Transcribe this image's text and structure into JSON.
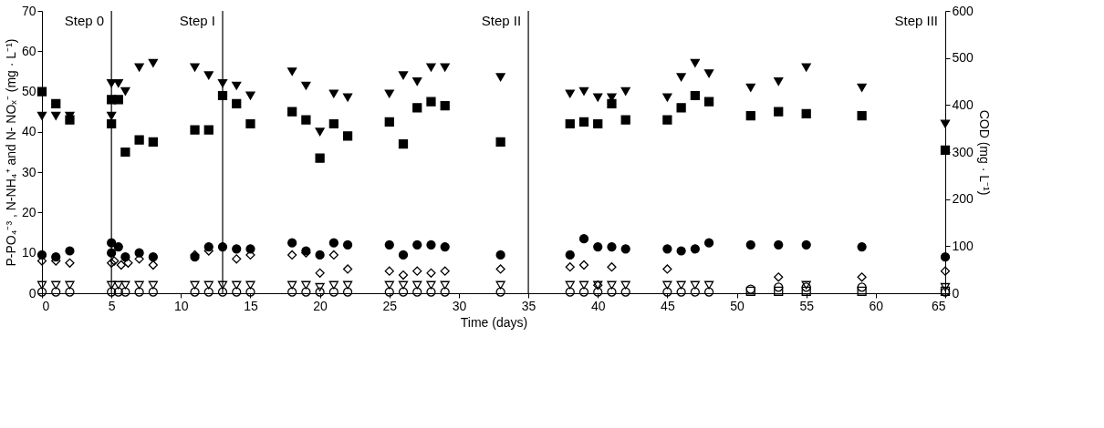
{
  "chart_data": {
    "type": "scatter",
    "xlabel": "Time (days)",
    "ylabel": "P-PO₄⁻³ , N-NH₄⁺ and N- NOₓ⁻ (mg · L⁻¹)",
    "y2label": "COD (mg · L⁻¹)",
    "xlim": [
      0,
      65
    ],
    "xticks": [
      0,
      5,
      10,
      15,
      20,
      25,
      30,
      35,
      40,
      45,
      50,
      55,
      60,
      65
    ],
    "ylim": [
      0,
      70
    ],
    "yticks": [
      0,
      10,
      20,
      30,
      40,
      50,
      60,
      70
    ],
    "y2lim": [
      0,
      600
    ],
    "y2ticks": [
      0,
      100,
      200,
      300,
      400,
      500,
      600
    ],
    "ref_lines": [
      {
        "axis": "x",
        "value": 5
      },
      {
        "axis": "x",
        "value": 13
      },
      {
        "axis": "x",
        "value": 35
      }
    ],
    "annotations": [
      "Step 0",
      "Step I",
      "Step II",
      "Step III"
    ],
    "series": [
      {
        "color": "#000000",
        "marker": "triangle",
        "axis": "y2",
        "x": [
          0,
          1,
          2,
          5,
          5,
          5.5,
          6,
          7,
          8,
          11,
          12,
          13,
          14,
          15,
          18,
          19,
          20,
          21,
          22,
          25,
          26,
          27,
          28,
          29,
          33,
          38,
          39,
          40,
          41,
          42,
          45,
          46,
          47,
          48,
          51,
          53,
          55,
          59,
          65
        ],
        "values": [
          377,
          377,
          377,
          377,
          446,
          446,
          429,
          480,
          489,
          480,
          463,
          446,
          441,
          420,
          471,
          441,
          343,
          424,
          416,
          424,
          463,
          450,
          480,
          480,
          459,
          424,
          429,
          416,
          416,
          429,
          416,
          459,
          489,
          467,
          437,
          450,
          480,
          437,
          360
        ]
      },
      {
        "color": "#000000",
        "marker": "square",
        "x": [
          0,
          1,
          2,
          5,
          5,
          5.5,
          6,
          7,
          8,
          11,
          12,
          13,
          14,
          15,
          18,
          19,
          20,
          21,
          22,
          25,
          26,
          27,
          28,
          29,
          33,
          38,
          39,
          40,
          41,
          42,
          45,
          46,
          47,
          48,
          51,
          53,
          55,
          59,
          65
        ],
        "values": [
          50,
          47,
          43,
          42,
          48,
          48,
          35,
          38,
          37.5,
          40.5,
          40.5,
          49,
          47,
          42,
          45,
          43,
          33.5,
          42,
          39,
          42.5,
          37,
          46,
          47.5,
          46.5,
          37.5,
          42,
          42.5,
          42,
          47,
          43,
          43,
          46,
          49,
          47.5,
          44,
          45,
          44.5,
          44,
          35.5
        ]
      },
      {
        "color": "#000000",
        "marker": "circle",
        "x": [
          0,
          1,
          2,
          5,
          5,
          5.5,
          6,
          7,
          8,
          11,
          12,
          13,
          14,
          15,
          18,
          19,
          20,
          21,
          22,
          25,
          26,
          27,
          28,
          29,
          33,
          38,
          39,
          40,
          41,
          42,
          45,
          46,
          47,
          48,
          51,
          53,
          55,
          59,
          65
        ],
        "values": [
          9.5,
          9,
          10.5,
          10,
          12.5,
          11.5,
          9,
          10,
          9,
          9,
          11.5,
          11.5,
          11,
          11,
          12.5,
          10.5,
          9.5,
          12.5,
          12,
          12,
          9.5,
          12,
          12,
          11.5,
          9.5,
          9.5,
          13.5,
          11.5,
          11.5,
          11,
          11,
          10.5,
          11,
          12.5,
          12,
          12,
          12,
          11.5,
          9
        ]
      },
      {
        "color": "#000000",
        "marker": "diamond-open",
        "x": [
          0,
          1,
          2,
          5,
          5.2,
          5.7,
          6.2,
          7,
          8,
          11,
          12,
          14,
          15,
          18,
          19,
          20,
          21,
          22,
          25,
          26,
          27,
          28,
          29,
          33,
          38,
          39,
          40,
          41,
          45,
          53,
          59,
          65
        ],
        "values": [
          8,
          8,
          7.5,
          7.5,
          8,
          7,
          7.5,
          8.5,
          7,
          9.5,
          10.5,
          8.5,
          9.5,
          9.5,
          10,
          5,
          9.5,
          6,
          5.5,
          4.5,
          5.5,
          5,
          5.5,
          6,
          6.5,
          7,
          2,
          6.5,
          6,
          4,
          4,
          5.5
        ]
      },
      {
        "color": "#000000",
        "marker": "triangle-open",
        "x": [
          0,
          1,
          2,
          5,
          5.5,
          6,
          7,
          8,
          11,
          12,
          13,
          14,
          15,
          18,
          19,
          20,
          21,
          22,
          25,
          26,
          27,
          28,
          29,
          33,
          38,
          39,
          40,
          41,
          42,
          45,
          46,
          47,
          48,
          55,
          65
        ],
        "values": [
          2,
          2,
          2,
          2,
          2,
          2,
          2,
          2,
          2,
          2,
          2,
          2,
          2,
          2,
          2,
          1.5,
          2,
          2,
          2,
          2,
          2,
          2,
          2,
          2,
          2,
          2,
          2,
          2,
          2,
          2,
          2,
          2,
          2,
          2,
          1.5
        ]
      },
      {
        "color": "#000000",
        "marker": "circle-open",
        "x": [
          0,
          1,
          2,
          5,
          5.5,
          6,
          7,
          8,
          11,
          12,
          13,
          14,
          15,
          18,
          19,
          20,
          21,
          22,
          25,
          26,
          27,
          28,
          29,
          33,
          38,
          39,
          40,
          41,
          42,
          45,
          46,
          47,
          48,
          51,
          53,
          55,
          59,
          65
        ],
        "values": [
          0.3,
          0.3,
          0.3,
          0.3,
          0.3,
          0.3,
          0.3,
          0.3,
          0.3,
          0.3,
          0.3,
          0.3,
          0.3,
          0.3,
          0.3,
          0.3,
          0.3,
          0.3,
          0.3,
          0.3,
          0.3,
          0.3,
          0.3,
          0.3,
          0.3,
          0.3,
          0.3,
          0.3,
          0.3,
          0.3,
          0.3,
          0.3,
          0.3,
          1,
          1.5,
          1.5,
          1.5,
          0.3
        ]
      },
      {
        "color": "#000000",
        "marker": "square-open",
        "x": [
          51,
          53,
          55,
          59,
          65
        ],
        "values": [
          0.5,
          0.5,
          0.5,
          0.5,
          0.5
        ]
      }
    ]
  }
}
